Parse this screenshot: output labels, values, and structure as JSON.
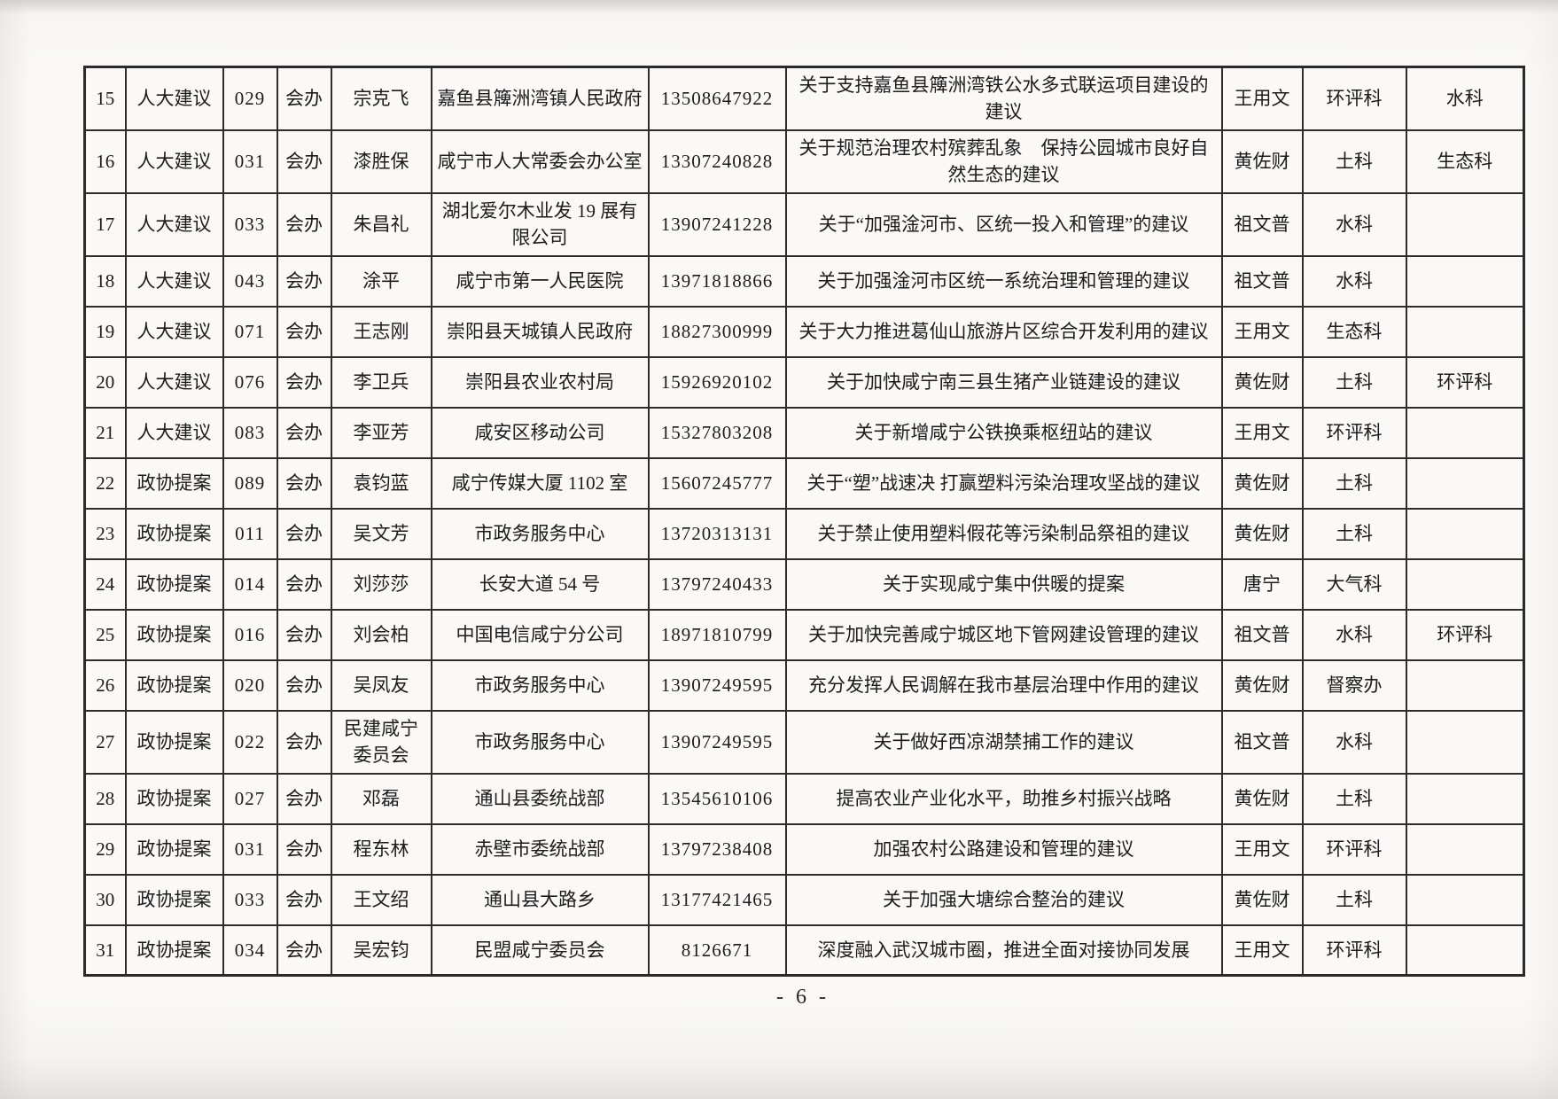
{
  "page": {
    "footer_page_number": "- 6 -"
  },
  "table": {
    "column_keys": [
      "no",
      "type",
      "code",
      "role",
      "name",
      "org",
      "phone",
      "title",
      "lead",
      "dept",
      "dept2"
    ],
    "rows": [
      {
        "no": "15",
        "type": "人大建议",
        "code": "029",
        "role": "会办",
        "name": "宗克飞",
        "org": "嘉鱼县簰洲湾镇人民政府",
        "phone": "13508647922",
        "title": "关于支持嘉鱼县簰洲湾铁公水多式联运项目建设的建议",
        "lead": "王用文",
        "dept": "环评科",
        "dept2": "水科"
      },
      {
        "no": "16",
        "type": "人大建议",
        "code": "031",
        "role": "会办",
        "name": "漆胜保",
        "org": "咸宁市人大常委会办公室",
        "phone": "13307240828",
        "title": "关于规范治理农村殡葬乱象　保持公园城市良好自然生态的建议",
        "lead": "黄佐财",
        "dept": "土科",
        "dept2": "生态科"
      },
      {
        "no": "17",
        "type": "人大建议",
        "code": "033",
        "role": "会办",
        "name": "朱昌礼",
        "org": "湖北爱尔木业发 19 展有限公司",
        "phone": "13907241228",
        "title": "关于“加强淦河市、区统一投入和管理”的建议",
        "lead": "祖文普",
        "dept": "水科",
        "dept2": ""
      },
      {
        "no": "18",
        "type": "人大建议",
        "code": "043",
        "role": "会办",
        "name": "涂平",
        "org": "咸宁市第一人民医院",
        "phone": "13971818866",
        "title": "关于加强淦河市区统一系统治理和管理的建议",
        "lead": "祖文普",
        "dept": "水科",
        "dept2": ""
      },
      {
        "no": "19",
        "type": "人大建议",
        "code": "071",
        "role": "会办",
        "name": "王志刚",
        "org": "崇阳县天城镇人民政府",
        "phone": "18827300999",
        "title": "关于大力推进葛仙山旅游片区综合开发利用的建议",
        "lead": "王用文",
        "dept": "生态科",
        "dept2": ""
      },
      {
        "no": "20",
        "type": "人大建议",
        "code": "076",
        "role": "会办",
        "name": "李卫兵",
        "org": "崇阳县农业农村局",
        "phone": "15926920102",
        "title": "关于加快咸宁南三县生猪产业链建设的建议",
        "lead": "黄佐财",
        "dept": "土科",
        "dept2": "环评科"
      },
      {
        "no": "21",
        "type": "人大建议",
        "code": "083",
        "role": "会办",
        "name": "李亚芳",
        "org": "咸安区移动公司",
        "phone": "15327803208",
        "title": "关于新增咸宁公铁换乘枢纽站的建议",
        "lead": "王用文",
        "dept": "环评科",
        "dept2": ""
      },
      {
        "no": "22",
        "type": "政协提案",
        "code": "089",
        "role": "会办",
        "name": "袁钧蓝",
        "org": "咸宁传媒大厦 1102 室",
        "phone": "15607245777",
        "title": "关于“塑”战速决 打赢塑料污染治理攻坚战的建议",
        "lead": "黄佐财",
        "dept": "土科",
        "dept2": ""
      },
      {
        "no": "23",
        "type": "政协提案",
        "code": "011",
        "role": "会办",
        "name": "吴文芳",
        "org": "市政务服务中心",
        "phone": "13720313131",
        "title": "关于禁止使用塑料假花等污染制品祭祖的建议",
        "lead": "黄佐财",
        "dept": "土科",
        "dept2": ""
      },
      {
        "no": "24",
        "type": "政协提案",
        "code": "014",
        "role": "会办",
        "name": "刘莎莎",
        "org": "长安大道 54 号",
        "phone": "13797240433",
        "title": "关于实现咸宁集中供暖的提案",
        "lead": "唐宁",
        "dept": "大气科",
        "dept2": ""
      },
      {
        "no": "25",
        "type": "政协提案",
        "code": "016",
        "role": "会办",
        "name": "刘会柏",
        "org": "中国电信咸宁分公司",
        "phone": "18971810799",
        "title": "关于加快完善咸宁城区地下管网建设管理的建议",
        "lead": "祖文普",
        "dept": "水科",
        "dept2": "环评科"
      },
      {
        "no": "26",
        "type": "政协提案",
        "code": "020",
        "role": "会办",
        "name": "吴凤友",
        "org": "市政务服务中心",
        "phone": "13907249595",
        "title": "充分发挥人民调解在我市基层治理中作用的建议",
        "lead": "黄佐财",
        "dept": "督察办",
        "dept2": ""
      },
      {
        "no": "27",
        "type": "政协提案",
        "code": "022",
        "role": "会办",
        "name": "民建咸宁委员会",
        "org": "市政务服务中心",
        "phone": "13907249595",
        "title": "关于做好西凉湖禁捕工作的建议",
        "lead": "祖文普",
        "dept": "水科",
        "dept2": ""
      },
      {
        "no": "28",
        "type": "政协提案",
        "code": "027",
        "role": "会办",
        "name": "邓磊",
        "org": "通山县委统战部",
        "phone": "13545610106",
        "title": "提高农业产业化水平，助推乡村振兴战略",
        "lead": "黄佐财",
        "dept": "土科",
        "dept2": ""
      },
      {
        "no": "29",
        "type": "政协提案",
        "code": "031",
        "role": "会办",
        "name": "程东林",
        "org": "赤壁市委统战部",
        "phone": "13797238408",
        "title": "加强农村公路建设和管理的建议",
        "lead": "王用文",
        "dept": "环评科",
        "dept2": ""
      },
      {
        "no": "30",
        "type": "政协提案",
        "code": "033",
        "role": "会办",
        "name": "王文绍",
        "org": "通山县大路乡",
        "phone": "13177421465",
        "title": "关于加强大塘综合整治的建议",
        "lead": "黄佐财",
        "dept": "土科",
        "dept2": ""
      },
      {
        "no": "31",
        "type": "政协提案",
        "code": "034",
        "role": "会办",
        "name": "吴宏钧",
        "org": "民盟咸宁委员会",
        "phone": "8126671",
        "title": "深度融入武汉城市圈，推进全面对接协同发展",
        "lead": "王用文",
        "dept": "环评科",
        "dept2": ""
      }
    ]
  }
}
